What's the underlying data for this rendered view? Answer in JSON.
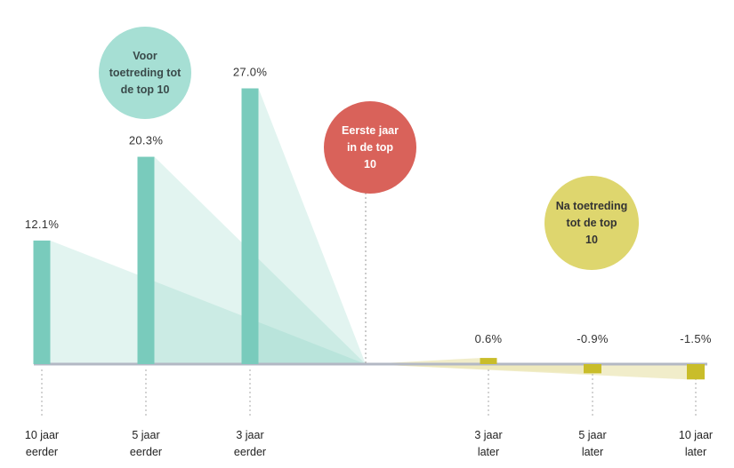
{
  "chart_data": {
    "type": "bar",
    "categories": [
      [
        "10 jaar",
        "eerder"
      ],
      [
        "5 jaar",
        "eerder"
      ],
      [
        "3 jaar",
        "eerder"
      ],
      [
        "3 jaar",
        "later"
      ],
      [
        "5 jaar",
        "later"
      ],
      [
        "10 jaar",
        "later"
      ]
    ],
    "values": [
      12.1,
      20.3,
      27.0,
      0.6,
      -0.9,
      -1.5
    ],
    "value_labels": [
      "12.1%",
      "20.3%",
      "27.0%",
      "0.6%",
      "-0.9%",
      "-1.5%"
    ],
    "ylim": [
      -2,
      28
    ],
    "grid": false,
    "colors": {
      "before": "#79cbbc",
      "after": "#c9bd2a",
      "after_fan": "#ece7b8",
      "axis": "#b3b8c4",
      "divider": "#999999"
    },
    "bubbles": [
      {
        "lines": [
          "Voor",
          "toetreding tot",
          "de top 10"
        ],
        "color": "#a6dfd4",
        "text_color": "#3a4a4a"
      },
      {
        "lines": [
          "Eerste jaar",
          "in de top",
          "10"
        ],
        "color": "#d9625a",
        "text_color": "#ffffff"
      },
      {
        "lines": [
          "Na toetreding",
          "tot de top",
          "10"
        ],
        "color": "#ded66e",
        "text_color": "#333333"
      }
    ]
  }
}
